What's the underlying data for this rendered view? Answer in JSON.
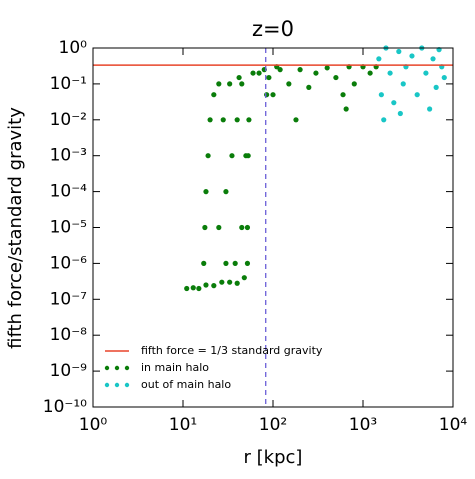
{
  "chart_data": {
    "type": "scatter",
    "title": "z=0",
    "x_label": "r [kpc]",
    "y_label": "fifth force/standard gravity",
    "xscale": "log",
    "yscale": "log",
    "xlim": [
      1,
      10000
    ],
    "ylim": [
      1e-10,
      1
    ],
    "xticks": [
      {
        "value": 1,
        "label": "10⁰"
      },
      {
        "value": 10,
        "label": "10¹"
      },
      {
        "value": 100,
        "label": "10²"
      },
      {
        "value": 1000,
        "label": "10³"
      },
      {
        "value": 10000,
        "label": "10⁴"
      }
    ],
    "yticks": [
      {
        "value": 1e-10,
        "label": "10⁻¹⁰"
      },
      {
        "value": 1e-09,
        "label": "10⁻⁹"
      },
      {
        "value": 1e-08,
        "label": "10⁻⁸"
      },
      {
        "value": 1e-07,
        "label": "10⁻⁷"
      },
      {
        "value": 1e-06,
        "label": "10⁻⁶"
      },
      {
        "value": 1e-05,
        "label": "10⁻⁵"
      },
      {
        "value": 0.0001,
        "label": "10⁻⁴"
      },
      {
        "value": 0.001,
        "label": "10⁻³"
      },
      {
        "value": 0.01,
        "label": "10⁻²"
      },
      {
        "value": 0.1,
        "label": "10⁻¹"
      },
      {
        "value": 1,
        "label": "10⁰"
      }
    ],
    "reference_lines": [
      {
        "name": "fifth force = 1/3 standard gravity",
        "value": 0.3333,
        "color": "#e8442a"
      }
    ],
    "vlines": [
      {
        "value": 83,
        "color": "#6a5fd8"
      }
    ],
    "legend": "lower left",
    "series": [
      {
        "name": "in main halo",
        "color": "#0a7d0a",
        "x": [
          11,
          13,
          15,
          18,
          22,
          27,
          33,
          40,
          48,
          52,
          17,
          17.5,
          18,
          19,
          20,
          22,
          25,
          25,
          30,
          35,
          40,
          45,
          30,
          45,
          50,
          38,
          28,
          33,
          42,
          52,
          53,
          54,
          60,
          70,
          80,
          90,
          100,
          120,
          150,
          200,
          250,
          300,
          400,
          500,
          600,
          700,
          800,
          1000,
          1200,
          1400,
          180,
          650,
          85,
          110
        ],
        "y": [
          2e-07,
          2.1e-07,
          2e-07,
          2.5e-07,
          2.4e-07,
          3e-07,
          3e-07,
          2.8e-07,
          4e-07,
          1e-06,
          1e-06,
          1e-05,
          0.0001,
          0.001,
          0.01,
          0.05,
          0.1,
          1e-05,
          0.0001,
          0.001,
          0.01,
          0.1,
          1e-06,
          1e-05,
          0.001,
          1e-06,
          0.01,
          0.1,
          0.15,
          1e-05,
          0.001,
          0.01,
          0.2,
          0.2,
          0.25,
          0.15,
          0.05,
          0.25,
          0.1,
          0.25,
          0.08,
          0.2,
          0.28,
          0.15,
          0.05,
          0.3,
          0.1,
          0.3,
          0.2,
          0.3,
          0.01,
          0.02,
          0.05,
          0.3
        ]
      },
      {
        "name": "out of main halo",
        "color": "#19c6c6",
        "x": [
          1500,
          1600,
          1800,
          2000,
          2200,
          2500,
          2800,
          3000,
          3500,
          4000,
          4500,
          5000,
          5500,
          6000,
          6500,
          7000,
          7500,
          8000,
          1700,
          2600
        ],
        "y": [
          0.5,
          0.05,
          1,
          0.2,
          0.03,
          0.8,
          0.1,
          0.3,
          0.6,
          0.05,
          1,
          0.2,
          0.02,
          0.5,
          0.08,
          0.9,
          0.3,
          0.15,
          0.01,
          0.015
        ]
      }
    ]
  }
}
